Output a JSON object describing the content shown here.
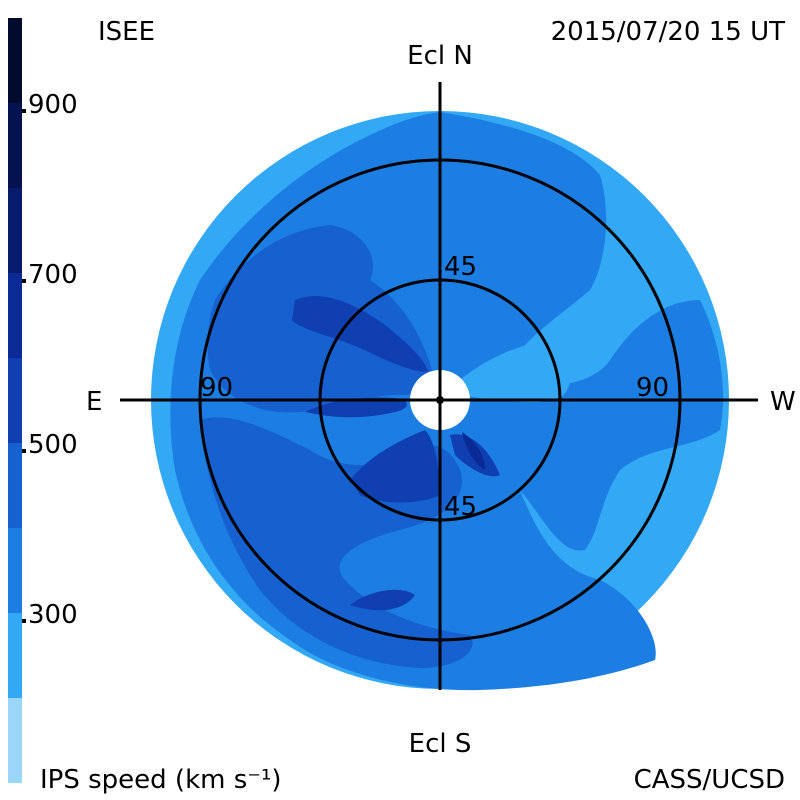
{
  "header": {
    "institution": "ISEE",
    "timestamp": "2015/07/20 15 UT"
  },
  "footer": {
    "colorbar_label": "IPS speed (km s⁻¹)",
    "credit": "CASS/UCSD"
  },
  "axes": {
    "north": "Ecl N",
    "south": "Ecl S",
    "east": "E",
    "west": "W",
    "ring_inner": "45",
    "ring_outer": "90"
  },
  "colorbar": {
    "ticks": [
      "900",
      "700",
      "500",
      "300"
    ],
    "tick_values": [
      900,
      700,
      500,
      300
    ],
    "range": [
      100,
      1000
    ],
    "bands": [
      {
        "from": 100,
        "to": 200,
        "color": "#99d6fa"
      },
      {
        "from": 200,
        "to": 300,
        "color": "#33a8f5"
      },
      {
        "from": 300,
        "to": 400,
        "color": "#1c7ee3"
      },
      {
        "from": 400,
        "to": 500,
        "color": "#1660cf"
      },
      {
        "from": 500,
        "to": 600,
        "color": "#0f3fb0"
      },
      {
        "from": 600,
        "to": 700,
        "color": "#0a2a95"
      },
      {
        "from": 700,
        "to": 800,
        "color": "#061b6e"
      },
      {
        "from": 800,
        "to": 900,
        "color": "#041250"
      },
      {
        "from": 900,
        "to": 1000,
        "color": "#020a2e"
      }
    ]
  },
  "colors": {
    "speed_200_300": "#33a8f5",
    "speed_300_400": "#1c7ee3",
    "speed_400_500": "#1660cf",
    "speed_500_600": "#0f3fb0",
    "background": "#ffffff",
    "lines": "#000000"
  }
}
